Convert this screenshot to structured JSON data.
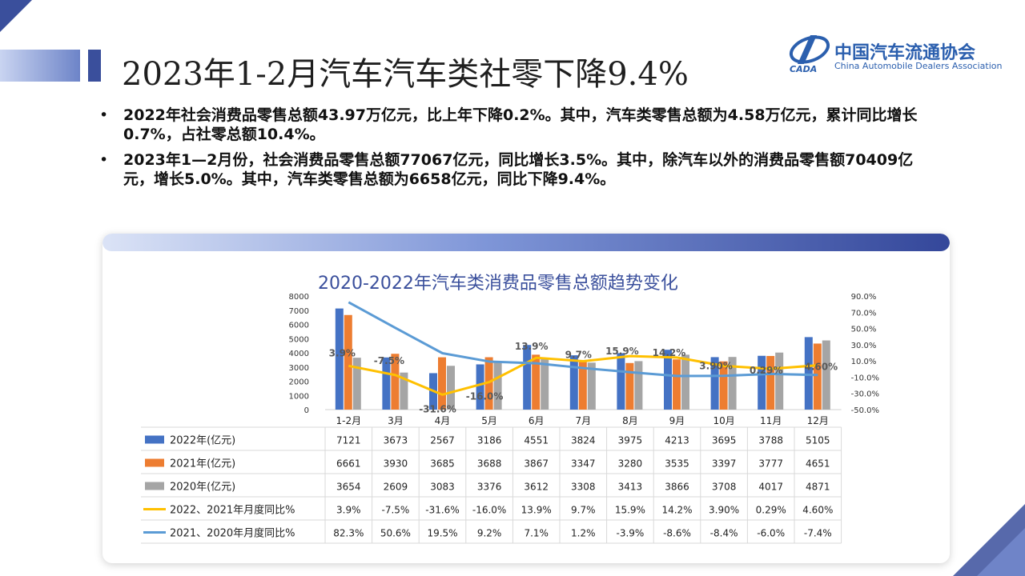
{
  "header": {
    "title": "2023年1-2月汽车汽车类社零下降9.4%",
    "logo_name": "中国汽车流通协会",
    "logo_en": "China Automobile Dealers Association",
    "logo_mark": "CADA"
  },
  "bullets": [
    "2022年社会消费品零售总额43.97万亿元，比上年下降0.2%。其中，汽车类零售总额为4.58万亿元，累计同比增长0.7%，占社零总额10.4%。",
    "2023年1—2月份，社会消费品零售总额77067亿元，同比增长3.5%。其中，除汽车以外的消费品零售额70409亿元，增长5.0%。其中，汽车类零售总额为6658亿元，同比下降9.4%。"
  ],
  "colors": {
    "s2022": "#4472c4",
    "s2021": "#ed7d31",
    "s2020": "#a5a5a5",
    "line2221": "#ffc000",
    "line2120": "#5b9bd5",
    "accent": "#3a4f9c"
  },
  "chart_data": {
    "type": "bar",
    "title": "2020-2022年汽车类消费品零售总额趋势变化",
    "categories": [
      "1-2月",
      "3月",
      "4月",
      "5月",
      "6月",
      "7月",
      "8月",
      "9月",
      "10月",
      "11月",
      "12月"
    ],
    "y_left_ticks": [
      "0",
      "1000",
      "2000",
      "3000",
      "4000",
      "5000",
      "6000",
      "7000",
      "8000"
    ],
    "y_left_range": [
      0,
      8000
    ],
    "y_right_ticks": [
      "90.0%",
      "70.0%",
      "50.0%",
      "30.0%",
      "10.0%",
      "-10.0%",
      "-30.0%",
      "-50.0%"
    ],
    "y_right_range": [
      -50,
      90
    ],
    "series": [
      {
        "name": "2022年(亿元)",
        "type": "bar",
        "values": [
          7121,
          3673,
          2567,
          3186,
          4551,
          3824,
          3975,
          4213,
          3695,
          3788,
          5105
        ],
        "labels": [
          "7121",
          "3673",
          "2567",
          "3186",
          "4551",
          "3824",
          "3975",
          "4213",
          "3695",
          "3788",
          "5105"
        ]
      },
      {
        "name": "2021年(亿元)",
        "type": "bar",
        "values": [
          6661,
          3930,
          3685,
          3688,
          3867,
          3347,
          3280,
          3535,
          3397,
          3777,
          4651
        ],
        "labels": [
          "6661",
          "3930",
          "3685",
          "3688",
          "3867",
          "3347",
          "3280",
          "3535",
          "3397",
          "3777",
          "4651"
        ]
      },
      {
        "name": "2020年(亿元)",
        "type": "bar",
        "values": [
          3654,
          2609,
          3083,
          3376,
          3612,
          3308,
          3413,
          3866,
          3708,
          4017,
          4871
        ],
        "labels": [
          "3654",
          "2609",
          "3083",
          "3376",
          "3612",
          "3308",
          "3413",
          "3866",
          "3708",
          "4017",
          "4871"
        ]
      },
      {
        "name": "2022、2021年月度同比%",
        "type": "line",
        "values": [
          3.9,
          -7.5,
          -31.6,
          -16.0,
          13.9,
          9.7,
          15.9,
          14.2,
          3.9,
          0.29,
          4.6
        ],
        "labels": [
          "3.9%",
          "-7.5%",
          "-31.6%",
          "-16.0%",
          "13.9%",
          "9.7%",
          "15.9%",
          "14.2%",
          "3.90%",
          "0.29%",
          "4.60%"
        ]
      },
      {
        "name": "2021、2020年月度同比%",
        "type": "line",
        "values": [
          82.3,
          50.6,
          19.5,
          9.2,
          7.1,
          1.2,
          -3.9,
          -8.6,
          -8.4,
          -6.0,
          -7.4
        ],
        "labels": [
          "82.3%",
          "50.6%",
          "19.5%",
          "9.2%",
          "7.1%",
          "1.2%",
          "-3.9%",
          "-8.6%",
          "-8.4%",
          "-6.0%",
          "-7.4%"
        ]
      }
    ],
    "point_labels": [
      "3.9%",
      "-7.5%",
      "-31.6%",
      "-16.0%",
      "13.9%",
      "9.7%",
      "15.9%",
      "14.2%",
      "3.90%",
      "0.29%",
      "4.60%"
    ]
  }
}
